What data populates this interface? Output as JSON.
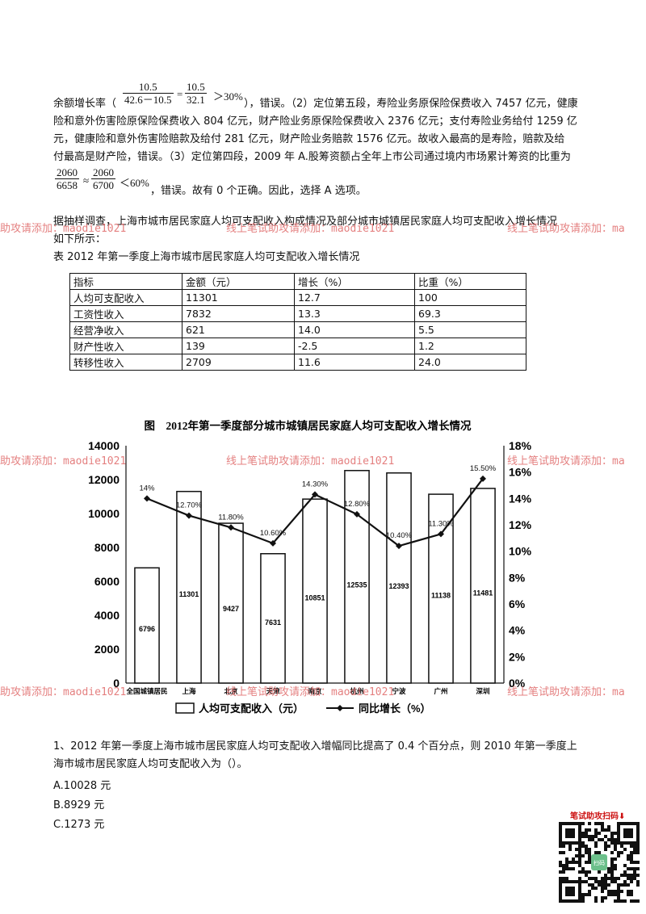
{
  "paragraph": {
    "prefix": "余额增长率（",
    "frac1": {
      "num": "10.5",
      "den": "42.6－10.5"
    },
    "eq": "=",
    "frac2": {
      "num": "10.5",
      "den": "32.1"
    },
    "cmp1": "＞30%",
    "line1_rest": "），错误。（2）定位第五段，寿险业务原保险保费收入 7457 亿元，健康",
    "line2": "险和意外伤害险原保险保费收入 804 亿元，财产险业务原保险保费收入 2376 亿元；支付寿险业务给付 1259 亿",
    "line3": "元，健康险和意外伤害险赔款及给付 281 亿元，财产险业务赔款 1576 亿元。故收入最高的是寿险，赔款及给",
    "line4": "付最高是财产险，错误。（3）定位第四段，2009 年 A.股筹资额占全年上市公司通过境内市场累计筹资的比重为",
    "frac3": {
      "num": "2060",
      "den": "6658"
    },
    "approx": "≈",
    "frac4": {
      "num": "2060",
      "den": "6700"
    },
    "cmp2": "＜60%",
    "line5_rest": "，错误。故有 0 个正确。因此，选择 A 选项。"
  },
  "intro": {
    "line1": "据抽样调查，上海市城市居民家庭人均可支配收入构成情况及部分城市城镇居民家庭人均可支配收入增长情况",
    "line2": "如下所示："
  },
  "table": {
    "caption": "表 2012 年第一季度上海市城市居民家庭人均可支配收入增长情况",
    "headers": [
      "指标",
      "金额（元）",
      "增长（%）",
      "比重（%）"
    ],
    "rows": [
      [
        "人均可支配收入",
        "11301",
        "12.7",
        "100"
      ],
      [
        "工资性收入",
        "7832",
        "13.3",
        "69.3"
      ],
      [
        "经营净收入",
        "621",
        "14.0",
        "5.5"
      ],
      [
        "财产性收入",
        "139",
        "-2.5",
        "1.2"
      ],
      [
        "转移性收入",
        "2709",
        "11.6",
        "24.0"
      ]
    ]
  },
  "chart_data": {
    "type": "bar",
    "title": "图　2012年第一季度部分城市城镇居民家庭人均可支配收入增长情况",
    "categories": [
      "全国城镇居民",
      "上海",
      "北京",
      "天津",
      "南京",
      "杭州",
      "宁波",
      "广州",
      "深圳"
    ],
    "series": [
      {
        "name": "人均可支配收入（元）",
        "type": "bar",
        "axis": "left",
        "values": [
          6796,
          11301,
          9427,
          7631,
          10851,
          12535,
          12393,
          11138,
          11481
        ],
        "labels": [
          "6796",
          "11301",
          "9427",
          "7631",
          "10851",
          "12535",
          "12393",
          "11138",
          "11481"
        ]
      },
      {
        "name": "同比增长（%）",
        "type": "line",
        "axis": "right",
        "values": [
          14,
          12.7,
          11.8,
          10.6,
          14.3,
          12.8,
          10.4,
          11.3,
          15.5
        ],
        "labels": [
          "14%",
          "12.70%",
          "11.80%",
          "10.60%",
          "14.30%",
          "12.80%",
          "10.40%",
          "11.30%",
          "15.50%"
        ]
      }
    ],
    "ylim": [
      0,
      14000
    ],
    "y_ticks": [
      "0",
      "2000",
      "4000",
      "6000",
      "8000",
      "10000",
      "12000",
      "14000"
    ],
    "y2lim": [
      0,
      18
    ],
    "y2_ticks": [
      "0%",
      "2%",
      "4%",
      "6%",
      "8%",
      "10%",
      "12%",
      "14%",
      "16%",
      "18%"
    ],
    "grid": false,
    "legend_position": "bottom"
  },
  "question": {
    "line1": "1、2012 年第一季度上海市城市居民家庭人均可支配收入增幅同比提高了 0.4 个百分点，则 2010 年第一季度上",
    "line2": "海市城市居民家庭人均可支配收入为（）。",
    "options": [
      "A.10028 元",
      "B.8929 元",
      "C.1273 元"
    ]
  },
  "watermark": {
    "left": "助攻请添加：maodie1021",
    "mid": "线上笔试助攻请添加：maodie1021",
    "right": "线上笔试助攻请添加：ma"
  },
  "qr": {
    "title": "笔试助攻扫码⬇",
    "center_text": "扫码"
  }
}
